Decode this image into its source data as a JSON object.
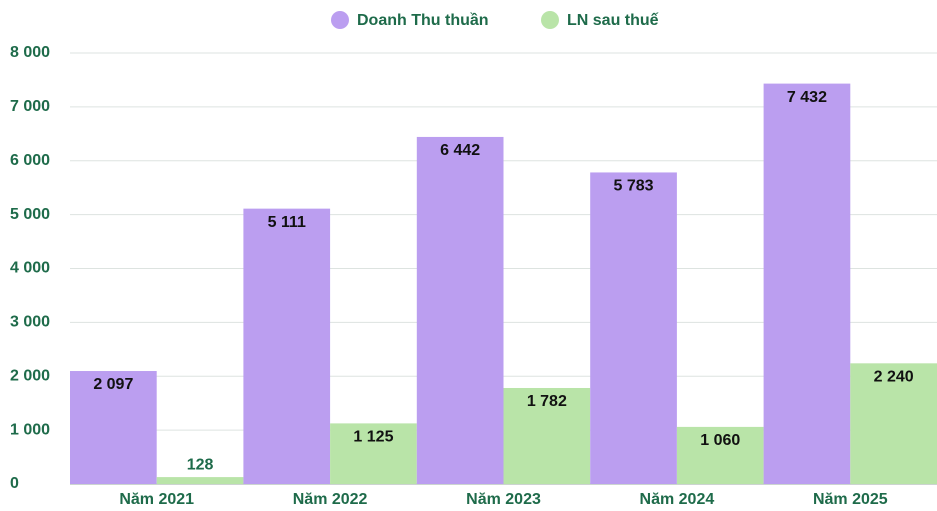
{
  "chart_data": {
    "type": "bar",
    "categories": [
      "Năm 2021",
      "Năm 2022",
      "Năm 2023",
      "Năm 2024",
      "Năm 2025"
    ],
    "series": [
      {
        "name": "Doanh Thu thuần",
        "color": "#bb9ef0",
        "values": [
          2097,
          5111,
          6442,
          5783,
          7432
        ],
        "value_labels": [
          "2 097",
          "5 111",
          "6 442",
          "5 783",
          "7 432"
        ]
      },
      {
        "name": "LN sau thuế",
        "color": "#b9e4a8",
        "values": [
          128,
          1125,
          1782,
          1060,
          2240
        ],
        "value_labels": [
          "128",
          "1 125",
          "1 782",
          "1 060",
          "2 240"
        ]
      }
    ],
    "ylim": [
      0,
      8000
    ],
    "yticks": [
      0,
      {
        "value": 1000,
        "label": "1 000"
      },
      {
        "value": 2000,
        "label": "2 000"
      },
      {
        "value": 3000,
        "label": "3 000"
      },
      {
        "value": 4000,
        "label": "4 000"
      },
      {
        "value": 5000,
        "label": "5 000"
      },
      {
        "value": 6000,
        "label": "6 000"
      },
      {
        "value": 7000,
        "label": "7 000"
      },
      {
        "value": 8000,
        "label": "8 000"
      }
    ],
    "grid": true,
    "legend": "top"
  }
}
